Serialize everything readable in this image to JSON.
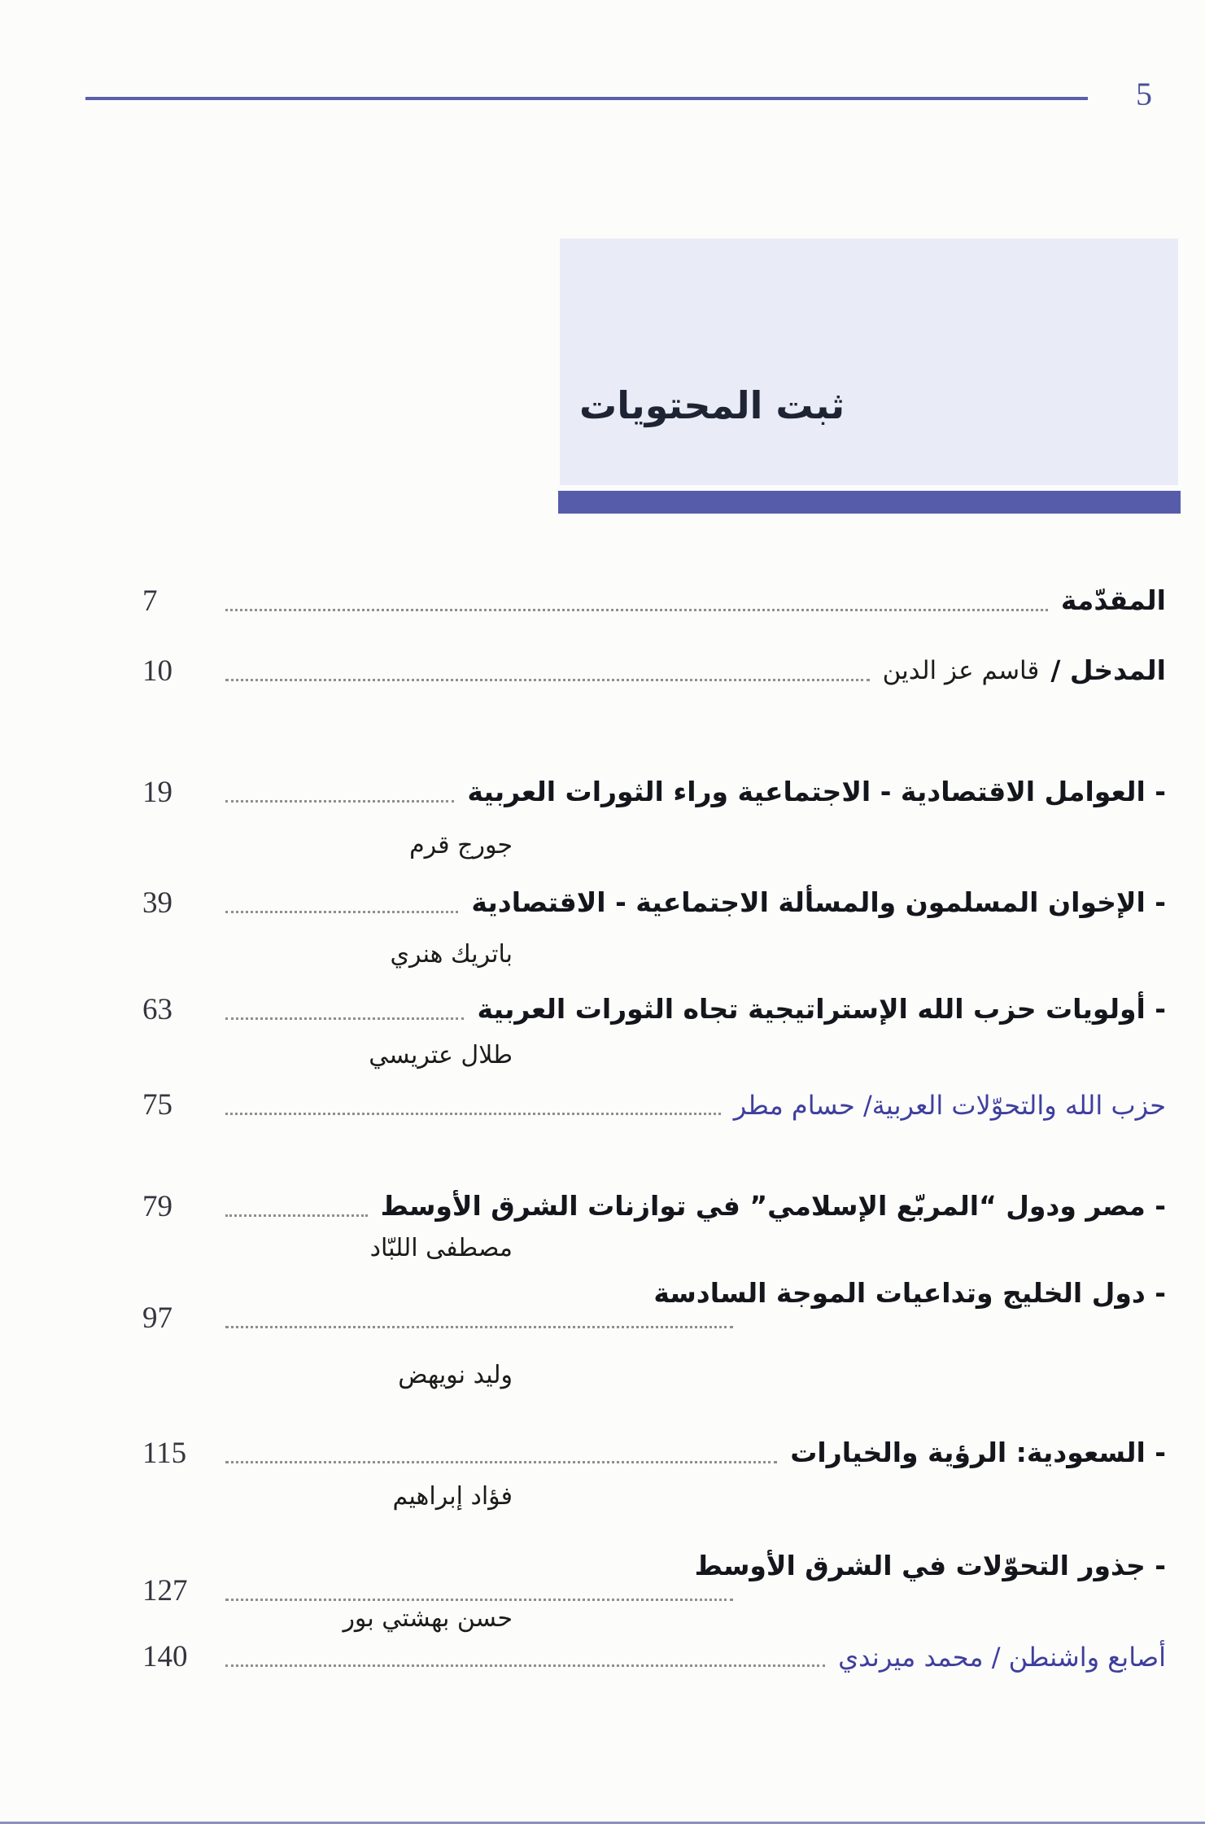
{
  "page": {
    "number": "5"
  },
  "header": {
    "title": "ثبت المحتويات"
  },
  "colors": {
    "title_bar": "#575caa",
    "title_box_bg": "#e9ecf6",
    "top_rule": "#5c60a8",
    "page_number": "#4a4f97",
    "blue_entry": "#3f3f9e",
    "entry_text": "#14161c"
  },
  "entries": [
    {
      "title": "المقدّمة",
      "page": "7"
    },
    {
      "title": "المدخل /",
      "subtitle": "قاسم عز الدين",
      "page": "10"
    },
    {
      "title": "- العوامل الاقتصادية - الاجتماعية وراء الثورات العربية",
      "page": "19",
      "author": "جورج قرم"
    },
    {
      "title": "- الإخوان المسلمون والمسألة الاجتماعية - الاقتصادية",
      "page": "39",
      "author": "باتريك هنري"
    },
    {
      "title": "- أولويات حزب الله الإستراتيجية تجاه الثورات العربية",
      "page": "63",
      "author": "طلال عتريسي"
    },
    {
      "title": "حزب الله والتحوّلات العربية/ حسام مطر",
      "page": "75",
      "style": "blue"
    },
    {
      "title": "- مصر ودول “المربّع الإسلامي” في توازنات الشرق الأوسط",
      "page": "79",
      "author": "مصطفى اللبّاد"
    },
    {
      "title": "- دول الخليج وتداعيات الموجة السادسة",
      "page": "97",
      "author": "وليد نويهض"
    },
    {
      "title": "- السعودية: الرؤية والخيارات",
      "page": "115",
      "author": "فؤاد إبراهيم"
    },
    {
      "title": "- جذور التحوّلات في الشرق الأوسط",
      "page": "127",
      "author": "حسن بهشتي بور"
    },
    {
      "title": "أصابع واشنطن / محمد ميرندي",
      "page": "140",
      "style": "blue"
    }
  ]
}
